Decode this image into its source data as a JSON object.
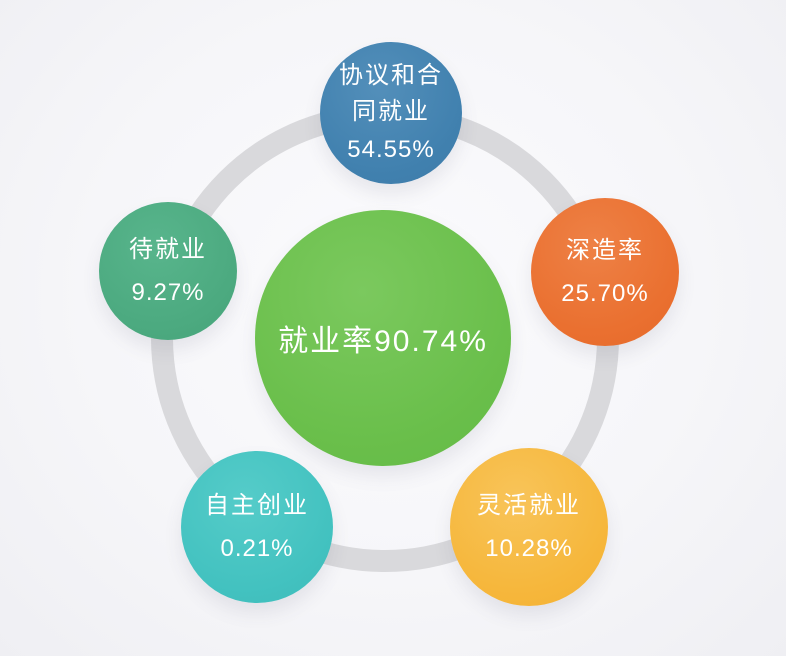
{
  "diagram": {
    "center": {
      "label": "就业率90.74%"
    },
    "nodes": {
      "agreement": {
        "full_label": "协议和合同就业",
        "line1": "协议和合",
        "line2": "同就业",
        "value": "54.55%"
      },
      "further_study": {
        "label": "深造率",
        "value": "25.70%"
      },
      "awaiting": {
        "label": "待就业",
        "value": "9.27%"
      },
      "self_employment": {
        "label": "自主创业",
        "value": "0.21%"
      },
      "flexible": {
        "label": "灵活就业",
        "value": "10.28%"
      }
    },
    "colors": {
      "center": "#6abf4b",
      "agreement": "#4181af",
      "further_study": "#ea7030",
      "awaiting": "#4caa80",
      "self_employment": "#43c2c0",
      "flexible": "#f6b73c",
      "ring": "#d9d9dc",
      "background": "#f6f6f9",
      "text": "#ffffff"
    }
  },
  "chart_data": {
    "type": "bubble",
    "title": "就业率90.74%",
    "center_metric": {
      "label": "就业率",
      "value": 90.74
    },
    "categories": [
      "协议和合同就业",
      "深造率",
      "灵活就业",
      "自主创业",
      "待就业"
    ],
    "values": [
      54.55,
      25.7,
      10.28,
      0.21,
      9.27
    ],
    "unit": "%",
    "layout": "hub-and-spoke, five satellite bubbles on a gray ring around center bubble",
    "legend_position": "none"
  }
}
